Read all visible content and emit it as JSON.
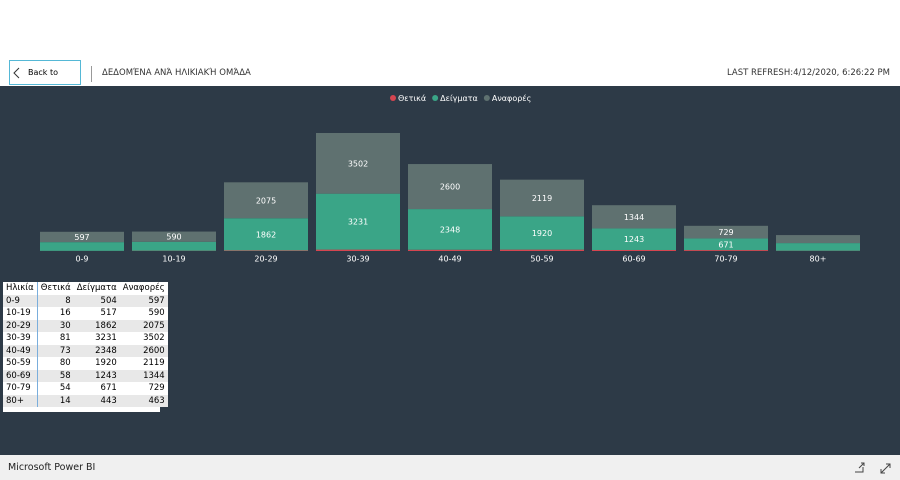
{
  "header": {
    "back": "Back to report",
    "title": "ΔΕΔΟΜΈΝΑ ΑΝΆ ΗΛΙΚΙΑΚΉ ΟΜΆΔΑ",
    "refresh": "LAST REFRESH:4/12/2020, 6:26:22 PM"
  },
  "chart_data": {
    "type": "stacked_bar",
    "categories": [
      "0-9",
      "10-19",
      "20-29",
      "30-39",
      "40-49",
      "50-59",
      "60-69",
      "70-79",
      "80+"
    ],
    "series": [
      {
        "name": "Θετικά",
        "color": "#d64550",
        "values": [
          8,
          16,
          30,
          81,
          73,
          80,
          58,
          54,
          14
        ]
      },
      {
        "name": "Δείγματα",
        "color": "#3aa587",
        "values": [
          504,
          517,
          1862,
          3231,
          2348,
          1920,
          1243,
          671,
          443
        ]
      },
      {
        "name": "Αναφορές",
        "color": "#5f7170",
        "values": [
          597,
          590,
          2075,
          3502,
          2600,
          2119,
          1344,
          729,
          463
        ]
      }
    ]
  },
  "table": {
    "columns": [
      "Ηλικία",
      "Θετικά",
      "Δείγματα",
      "Αναφορές"
    ],
    "rows": [
      [
        "0-9",
        8,
        504,
        597
      ],
      [
        "10-19",
        16,
        517,
        590
      ],
      [
        "20-29",
        30,
        1862,
        2075
      ],
      [
        "30-39",
        81,
        3231,
        3502
      ],
      [
        "40-49",
        73,
        2348,
        2600
      ],
      [
        "50-59",
        80,
        1920,
        2119
      ],
      [
        "60-69",
        58,
        1243,
        1344
      ],
      [
        "70-79",
        54,
        671,
        729
      ],
      [
        "80+",
        14,
        443,
        463
      ]
    ]
  },
  "footer": {
    "brand": "Microsoft Power BI"
  }
}
